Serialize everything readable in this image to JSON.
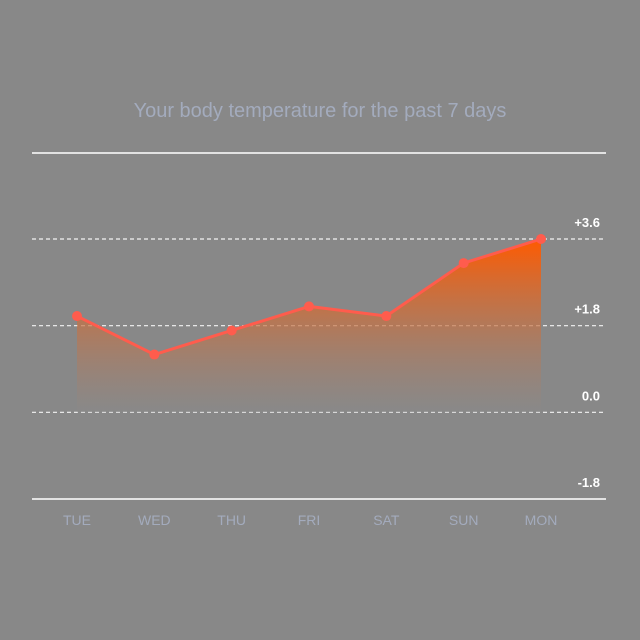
{
  "chart_data": {
    "type": "area",
    "title": "Your body temperature for the past 7 days",
    "categories": [
      "TUE",
      "WED",
      "THU",
      "FRI",
      "SAT",
      "SUN",
      "MON"
    ],
    "series": [
      {
        "values": [
          2.0,
          1.2,
          1.7,
          2.2,
          2.0,
          3.1,
          3.6
        ]
      }
    ],
    "yticks": [
      "+3.6",
      "+1.8",
      "0.0",
      "-1.8"
    ],
    "ylim": [
      -1.8,
      3.6
    ],
    "xlabel": "",
    "ylabel": "",
    "grid": true,
    "legend": "none",
    "colors": {
      "background": "#888888",
      "line": "#ff5c4d",
      "fill_top": "#ff5a00",
      "fill_bottom": "#8a8a8a",
      "title": "#a3abbd",
      "category_label": "#a3abbd",
      "gridline": "#ffffff"
    }
  }
}
